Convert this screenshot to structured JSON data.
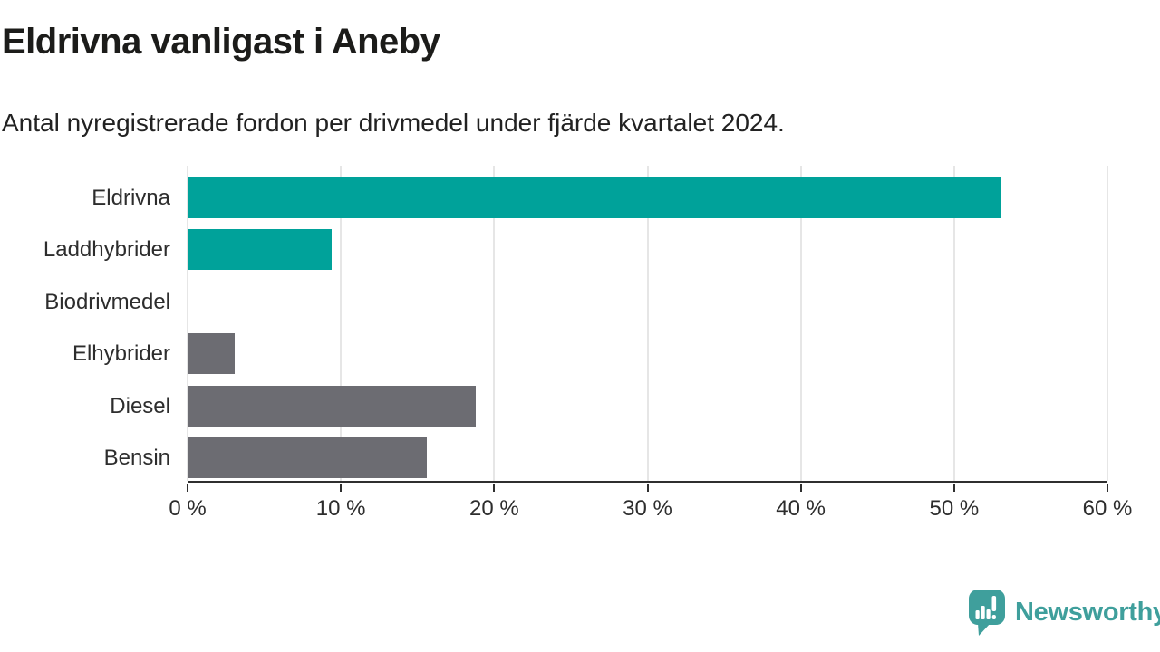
{
  "header": {
    "title": "Eldrivna vanligast i Aneby",
    "subtitle": "Antal nyregistrerade fordon per drivmedel under fjärde kvartalet 2024."
  },
  "chart_data": {
    "type": "bar",
    "orientation": "horizontal",
    "title": "Eldrivna vanligast i Aneby",
    "subtitle": "Antal nyregistrerade fordon per drivmedel under fjärde kvartalet 2024.",
    "categories": [
      "Eldrivna",
      "Laddhybrider",
      "Biodrivmedel",
      "Elhybrider",
      "Diesel",
      "Bensin"
    ],
    "values": [
      53.1,
      9.4,
      0,
      3.1,
      18.8,
      15.6
    ],
    "unit": "%",
    "xlim": [
      0,
      60
    ],
    "xticks": [
      0,
      10,
      20,
      30,
      40,
      50,
      60
    ],
    "xtick_labels": [
      "0 %",
      "10 %",
      "20 %",
      "30 %",
      "40 %",
      "50 %",
      "60 %"
    ],
    "grid": "vertical",
    "legend": "none",
    "xlabel": "",
    "ylabel": "",
    "bar_colors": [
      "#00a29a",
      "#00a29a",
      "#6c6c72",
      "#6c6c72",
      "#6c6c72",
      "#6c6c72"
    ],
    "colors": {
      "highlight": "#00a29a",
      "default": "#6c6c72",
      "gridline": "#e6e6e6",
      "axis": "#2f2f2f",
      "text": "#2d2d2d"
    }
  },
  "footer": {
    "logo_text": "Newsworthy",
    "logo_color": "#3f9f9c",
    "logo_icon": "speech-bubble-bar-chart"
  }
}
